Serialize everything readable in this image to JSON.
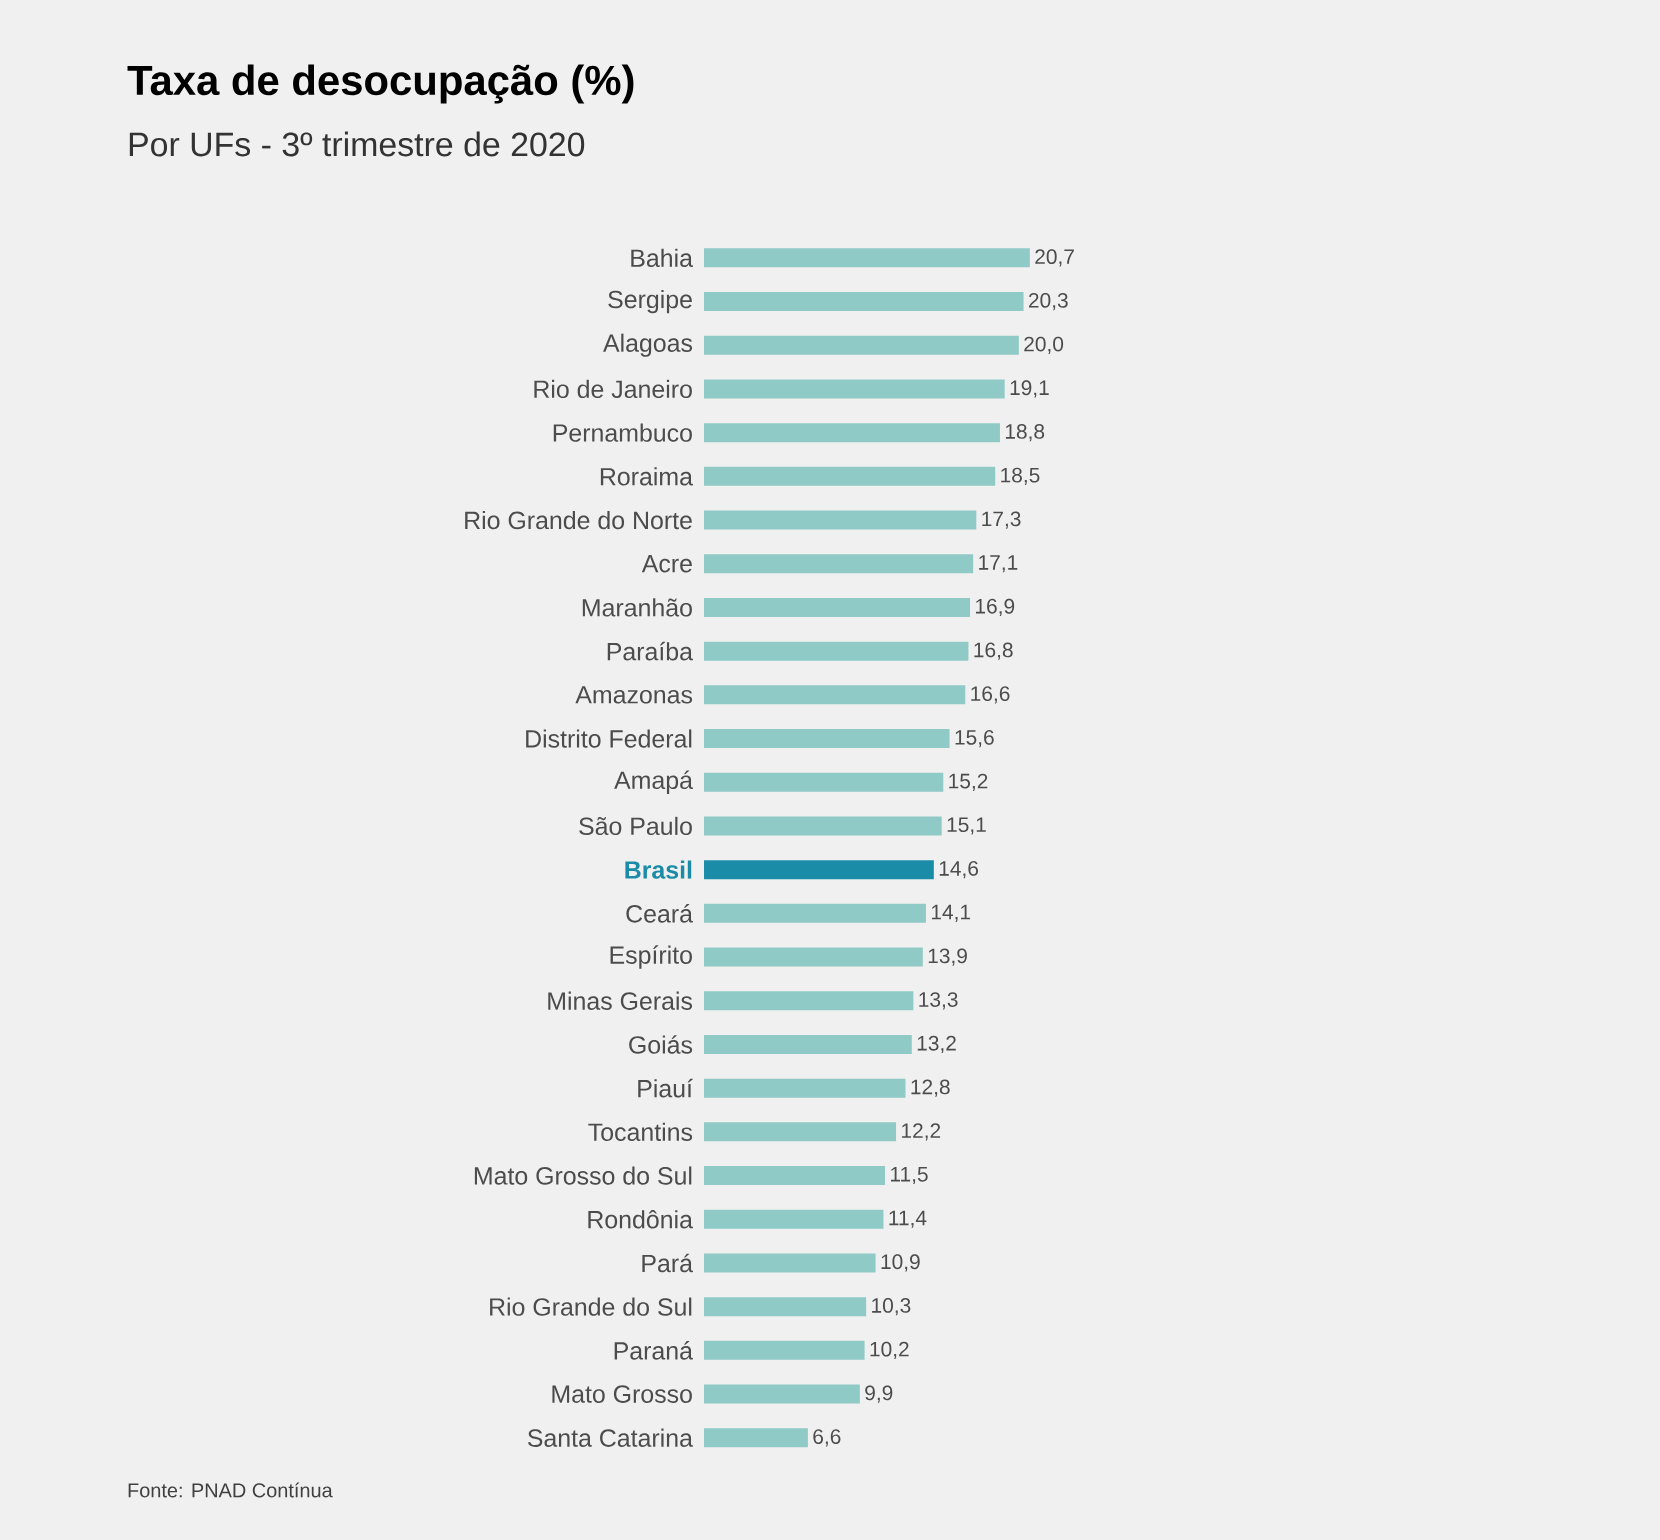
{
  "chart_data": {
    "type": "bar",
    "orientation": "horizontal",
    "title": "Taxa de desocupação (%)",
    "subtitle": "Por UFs - 3º trimestre de 2020",
    "categories": [
      "Bahia",
      "Sergipe",
      "Alagoas",
      "Rio de Janeiro",
      "Pernambuco",
      "Roraima",
      "Rio Grande do Norte",
      "Acre",
      "Maranhão",
      "Paraíba",
      "Amazonas",
      "Distrito Federal",
      "Amapá",
      "São Paulo",
      "Brasil",
      "Ceará",
      "Espírito",
      "Minas Gerais",
      "Goiás",
      "Piauí",
      "Tocantins",
      "Mato Grosso do Sul",
      "Rondônia",
      "Pará",
      "Rio Grande do Sul",
      "Paraná",
      "Mato Grosso",
      "Santa Catarina"
    ],
    "values": [
      20.7,
      20.3,
      20.0,
      19.1,
      18.8,
      18.5,
      17.3,
      17.1,
      16.9,
      16.8,
      16.6,
      15.6,
      15.2,
      15.1,
      14.6,
      14.1,
      13.9,
      13.3,
      13.2,
      12.8,
      12.2,
      11.5,
      11.4,
      10.9,
      10.3,
      10.2,
      9.9,
      6.6
    ],
    "value_labels": [
      "20,7",
      "20,3",
      "20,0",
      "19,1",
      "18,8",
      "18,5",
      "17,3",
      "17,1",
      "16,9",
      "16,8",
      "16,6",
      "15,6",
      "15,2",
      "15,1",
      "14,6",
      "14,1",
      "13,9",
      "13,3",
      "13,2",
      "12,8",
      "12,2",
      "11,5",
      "11,4",
      "10,9",
      "10,3",
      "10,2",
      "9,9",
      "6,6"
    ],
    "colors": [
      "#8fcac6",
      "#8fcac6",
      "#8fcac6",
      "#8fcac6",
      "#8fcac6",
      "#8fcac6",
      "#8fcac6",
      "#8fcac6",
      "#8fcac6",
      "#8fcac6",
      "#8fcac6",
      "#8fcac6",
      "#8fcac6",
      "#8fcac6",
      "#1a8ca8",
      "#8fcac6",
      "#8fcac6",
      "#8fcac6",
      "#8fcac6",
      "#8fcac6",
      "#8fcac6",
      "#8fcac6",
      "#8fcac6",
      "#8fcac6",
      "#8fcac6",
      "#8fcac6",
      "#8fcac6",
      "#8fcac6"
    ],
    "annotations": [
      "Fonte: PNAD Contínua"
    ]
  }
}
